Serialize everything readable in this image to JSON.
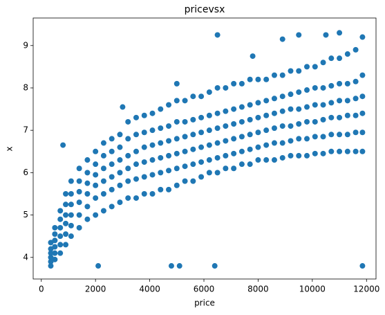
{
  "chart_data": {
    "type": "scatter",
    "title": "pricevsx",
    "x_label": "price",
    "y_label": "x",
    "color": "#1f77b4",
    "xlim": [
      -300,
      12350
    ],
    "ylim": [
      3.49,
      9.65
    ],
    "xticks": [
      0,
      2000,
      4000,
      6000,
      8000,
      10000,
      12000
    ],
    "yticks": [
      4,
      5,
      6,
      7,
      8,
      9
    ],
    "x": [
      350,
      350,
      350,
      350,
      350,
      350,
      500,
      500,
      500,
      500,
      500,
      500,
      700,
      700,
      700,
      700,
      700,
      700,
      900,
      900,
      900,
      900,
      900,
      900,
      1100,
      1100,
      1100,
      1100,
      1100,
      1100,
      1400,
      1400,
      1400,
      1400,
      1400,
      1400,
      1700,
      1700,
      1700,
      1700,
      1700,
      1700,
      2000,
      2000,
      2000,
      2000,
      2000,
      2000,
      2300,
      2300,
      2300,
      2300,
      2300,
      2300,
      2600,
      2600,
      2600,
      2600,
      2600,
      2600,
      2900,
      2900,
      2900,
      2900,
      2900,
      2900,
      3200,
      3200,
      3200,
      3200,
      3200,
      3200,
      3500,
      3500,
      3500,
      3500,
      3500,
      3500,
      3800,
      3800,
      3800,
      3800,
      3800,
      3800,
      4100,
      4100,
      4100,
      4100,
      4100,
      4100,
      4400,
      4400,
      4400,
      4400,
      4400,
      4400,
      4700,
      4700,
      4700,
      4700,
      4700,
      4700,
      5000,
      5000,
      5000,
      5000,
      5000,
      5000,
      5300,
      5300,
      5300,
      5300,
      5300,
      5300,
      5600,
      5600,
      5600,
      5600,
      5600,
      5600,
      5900,
      5900,
      5900,
      5900,
      5900,
      5900,
      6200,
      6200,
      6200,
      6200,
      6200,
      6200,
      6500,
      6500,
      6500,
      6500,
      6500,
      6500,
      6800,
      6800,
      6800,
      6800,
      6800,
      6800,
      7100,
      7100,
      7100,
      7100,
      7100,
      7100,
      7400,
      7400,
      7400,
      7400,
      7400,
      7400,
      7700,
      7700,
      7700,
      7700,
      7700,
      7700,
      8000,
      8000,
      8000,
      8000,
      8000,
      8000,
      8300,
      8300,
      8300,
      8300,
      8300,
      8300,
      8600,
      8600,
      8600,
      8600,
      8600,
      8600,
      8900,
      8900,
      8900,
      8900,
      8900,
      8900,
      9200,
      9200,
      9200,
      9200,
      9200,
      9200,
      9500,
      9500,
      9500,
      9500,
      9500,
      9500,
      9800,
      9800,
      9800,
      9800,
      9800,
      9800,
      10100,
      10100,
      10100,
      10100,
      10100,
      10100,
      10400,
      10400,
      10400,
      10400,
      10400,
      10400,
      10700,
      10700,
      10700,
      10700,
      10700,
      10700,
      11000,
      11000,
      11000,
      11000,
      11000,
      11000,
      11300,
      11300,
      11300,
      11300,
      11300,
      11300,
      11600,
      11600,
      11600,
      11600,
      11600,
      11600,
      11850,
      11850,
      11850,
      11850,
      11850,
      11850,
      800,
      2100,
      4800,
      5100,
      6400,
      11850,
      6500,
      10500,
      11000,
      8900,
      9500,
      3000,
      5000,
      7800
    ],
    "values": [
      3.8,
      3.9,
      4.0,
      4.1,
      4.2,
      4.35,
      3.95,
      4.1,
      4.25,
      4.4,
      4.55,
      4.7,
      4.1,
      4.3,
      4.5,
      4.7,
      4.9,
      5.1,
      4.3,
      4.55,
      4.8,
      5.0,
      5.25,
      5.5,
      4.5,
      4.75,
      5.0,
      5.25,
      5.5,
      5.8,
      4.7,
      5.0,
      5.3,
      5.55,
      5.8,
      6.1,
      4.9,
      5.2,
      5.5,
      5.75,
      6.0,
      6.3,
      5.0,
      5.4,
      5.7,
      5.95,
      6.2,
      6.5,
      5.1,
      5.5,
      5.8,
      6.1,
      6.4,
      6.7,
      5.2,
      5.6,
      5.9,
      6.2,
      6.5,
      6.8,
      5.3,
      5.7,
      6.0,
      6.3,
      6.6,
      6.9,
      5.4,
      5.8,
      6.1,
      6.4,
      6.8,
      7.2,
      5.4,
      5.85,
      6.2,
      6.5,
      6.9,
      7.3,
      5.5,
      5.9,
      6.25,
      6.6,
      6.95,
      7.35,
      5.5,
      5.95,
      6.3,
      6.65,
      7.0,
      7.4,
      5.6,
      6.0,
      6.35,
      6.7,
      7.05,
      7.5,
      5.6,
      6.05,
      6.4,
      6.75,
      7.1,
      7.6,
      5.7,
      6.1,
      6.45,
      6.8,
      7.2,
      7.7,
      5.8,
      6.15,
      6.5,
      6.85,
      7.2,
      7.7,
      5.8,
      6.2,
      6.55,
      6.9,
      7.25,
      7.8,
      5.9,
      6.25,
      6.6,
      6.95,
      7.3,
      7.8,
      6.0,
      6.3,
      6.65,
      7.0,
      7.35,
      7.9,
      6.0,
      6.35,
      6.7,
      7.05,
      7.4,
      8.0,
      6.1,
      6.4,
      6.75,
      7.1,
      7.45,
      8.0,
      6.1,
      6.45,
      6.8,
      7.15,
      7.5,
      8.1,
      6.2,
      6.5,
      6.85,
      7.2,
      7.55,
      8.1,
      6.2,
      6.55,
      6.9,
      7.25,
      7.6,
      8.2,
      6.3,
      6.6,
      6.95,
      7.3,
      7.65,
      8.2,
      6.3,
      6.65,
      7.0,
      7.35,
      7.7,
      8.2,
      6.3,
      6.7,
      7.05,
      7.4,
      7.75,
      8.3,
      6.35,
      6.7,
      7.1,
      7.45,
      7.8,
      8.3,
      6.4,
      6.75,
      7.1,
      7.5,
      7.85,
      8.4,
      6.4,
      6.8,
      7.15,
      7.5,
      7.9,
      8.4,
      6.4,
      6.8,
      7.2,
      7.55,
      7.95,
      8.5,
      6.45,
      6.85,
      7.2,
      7.6,
      8.0,
      8.5,
      6.45,
      6.85,
      7.25,
      7.6,
      8.0,
      8.6,
      6.5,
      6.9,
      7.3,
      7.65,
      8.05,
      8.7,
      6.5,
      6.9,
      7.3,
      7.7,
      8.1,
      8.7,
      6.5,
      6.9,
      7.35,
      7.7,
      8.1,
      8.8,
      6.5,
      6.95,
      7.35,
      7.75,
      8.15,
      8.9,
      6.5,
      6.95,
      7.4,
      7.8,
      8.3,
      9.2,
      6.65,
      3.8,
      3.8,
      3.8,
      3.8,
      3.8,
      9.25,
      9.25,
      9.3,
      9.15,
      9.25,
      7.55,
      8.1,
      8.75
    ]
  }
}
